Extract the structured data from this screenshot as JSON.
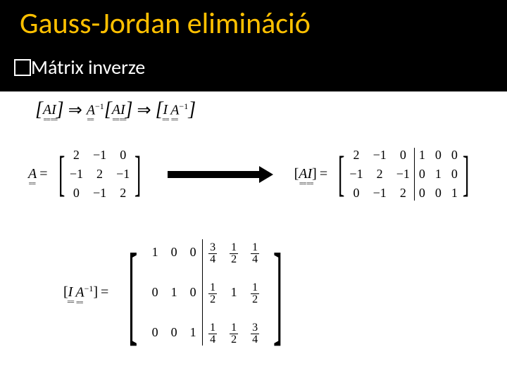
{
  "header": {
    "title": "Gauss-Jordan elimináció",
    "title_color": "#ffc000",
    "bullet_text": "Mátrix inverze",
    "background": "#000000"
  },
  "symbols": {
    "A": "A",
    "I": "I",
    "inv": "−1",
    "implies": "⇒",
    "equals": "="
  },
  "matrixA": {
    "label": "A",
    "rows": [
      [
        "2",
        "−1",
        "0"
      ],
      [
        "−1",
        "2",
        "−1"
      ],
      [
        "0",
        "−1",
        "2"
      ]
    ]
  },
  "augmentedAI": {
    "label_left": "A",
    "label_right": "I",
    "left": [
      [
        "2",
        "−1",
        "0"
      ],
      [
        "−1",
        "2",
        "−1"
      ],
      [
        "0",
        "−1",
        "2"
      ]
    ],
    "right": [
      [
        "1",
        "0",
        "0"
      ],
      [
        "0",
        "1",
        "0"
      ],
      [
        "0",
        "0",
        "1"
      ]
    ]
  },
  "result": {
    "label_left": "I",
    "label_right": "A",
    "label_right_sup": "−1",
    "left": [
      [
        "1",
        "0",
        "0"
      ],
      [
        "0",
        "1",
        "0"
      ],
      [
        "0",
        "0",
        "1"
      ]
    ],
    "right": [
      [
        {
          "n": "3",
          "d": "4"
        },
        {
          "n": "1",
          "d": "2"
        },
        {
          "n": "1",
          "d": "4"
        }
      ],
      [
        {
          "n": "1",
          "d": "2"
        },
        "1",
        {
          "n": "1",
          "d": "2"
        }
      ],
      [
        {
          "n": "1",
          "d": "4"
        },
        {
          "n": "1",
          "d": "2"
        },
        {
          "n": "3",
          "d": "4"
        }
      ]
    ]
  },
  "styling": {
    "title_fontsize": 42,
    "bullet_fontsize": 28,
    "matrix_fontsize": 18,
    "arrow_color": "#000000",
    "page_background": "#ffffff"
  }
}
